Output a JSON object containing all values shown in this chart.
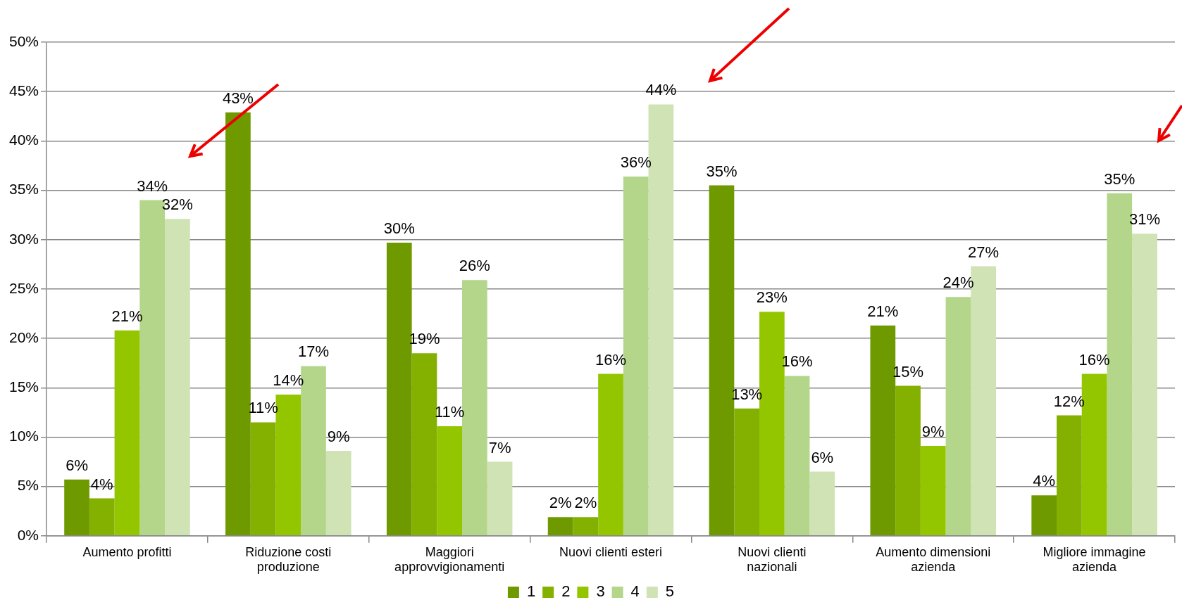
{
  "chart_data": {
    "type": "bar",
    "categories": [
      "Aumento profitti",
      "Riduzione costi produzione",
      "Maggiori approvvigionamenti",
      "Nuovi clienti esteri",
      "Nuovi clienti nazionali",
      "Aumento dimensioni azienda",
      "Migliore immagine azienda"
    ],
    "series": [
      {
        "name": "1",
        "color": "#6e9a00",
        "values": [
          5.7,
          42.9,
          29.7,
          1.9,
          35.5,
          21.3,
          4.1
        ],
        "value_labels": [
          "6%",
          "43%",
          "30%",
          "2%",
          "35%",
          "21%",
          "4%"
        ]
      },
      {
        "name": "2",
        "color": "#84b000",
        "values": [
          3.8,
          11.5,
          18.5,
          1.9,
          12.9,
          15.2,
          12.2
        ],
        "value_labels": [
          "4%",
          "11%",
          "19%",
          "2%",
          "13%",
          "15%",
          "12%"
        ]
      },
      {
        "name": "3",
        "color": "#94c600",
        "values": [
          20.8,
          14.3,
          11.1,
          16.4,
          22.7,
          9.1,
          16.4
        ],
        "value_labels": [
          "21%",
          "14%",
          "11%",
          "16%",
          "23%",
          "9%",
          "16%"
        ]
      },
      {
        "name": "4",
        "color": "#b4d68a",
        "values": [
          34.0,
          17.2,
          25.9,
          36.4,
          16.2,
          24.2,
          34.7
        ],
        "value_labels": [
          "34%",
          "17%",
          "26%",
          "36%",
          "16%",
          "24%",
          "35%"
        ]
      },
      {
        "name": "5",
        "color": "#cfe3b4",
        "values": [
          32.1,
          8.6,
          7.5,
          43.7,
          6.5,
          27.3,
          30.6
        ],
        "value_labels": [
          "32%",
          "9%",
          "7%",
          "44%",
          "6%",
          "27%",
          "31%"
        ]
      }
    ],
    "ylim": [
      0,
      50
    ],
    "yticks": [
      {
        "value": 0,
        "label": "0%"
      },
      {
        "value": 5,
        "label": "5%"
      },
      {
        "value": 10,
        "label": "10%"
      },
      {
        "value": 15,
        "label": "15%"
      },
      {
        "value": 20,
        "label": "20%"
      },
      {
        "value": 25,
        "label": "25%"
      },
      {
        "value": 30,
        "label": "30%"
      },
      {
        "value": 35,
        "label": "35%"
      },
      {
        "value": 40,
        "label": "40%"
      },
      {
        "value": 45,
        "label": "45%"
      },
      {
        "value": 50,
        "label": "50%"
      }
    ],
    "grid": "y",
    "legend": "bottom"
  }
}
